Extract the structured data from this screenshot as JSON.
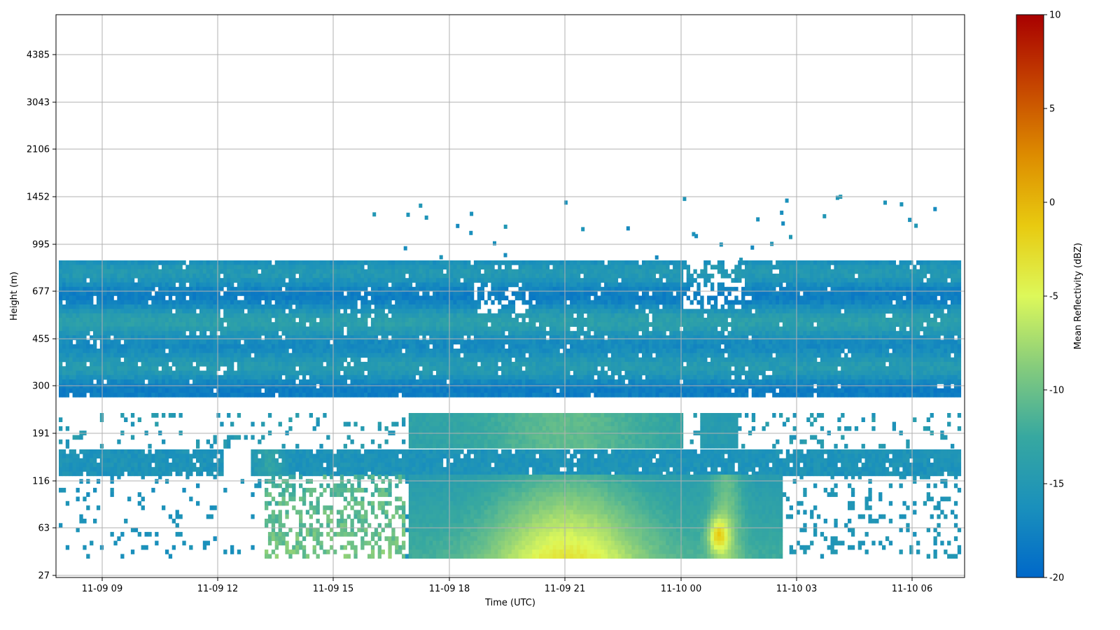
{
  "chart_data": {
    "type": "heatmap",
    "title": "",
    "xlabel": "Time (UTC)",
    "ylabel": "Height (m)",
    "x_ticks": [
      "11-09 09",
      "11-09 12",
      "11-09 15",
      "11-09 18",
      "11-09 21",
      "11-10 00",
      "11-10 03",
      "11-10 06"
    ],
    "x_range": [
      "11-09 07:50",
      "11-10 07:25"
    ],
    "y_ticks": [
      27,
      63,
      116,
      191,
      300,
      455,
      677,
      995,
      1452,
      2106,
      3043,
      4385
    ],
    "y_scale": "log",
    "y_range": [
      25,
      6300
    ],
    "grid": true,
    "colorbar": {
      "label": "Mean Reflectivity (dBZ)",
      "ticks": [
        -20,
        -15,
        -10,
        -5,
        0,
        5,
        10
      ],
      "range": [
        -20,
        10
      ],
      "colormap": [
        "#0068c9",
        "#1a90bc",
        "#37a8a0",
        "#86cc7c",
        "#ddf85a",
        "#e8ca10",
        "#dd8c00",
        "#c54400",
        "#a80000"
      ]
    },
    "missing_color": "#ffffff"
  }
}
